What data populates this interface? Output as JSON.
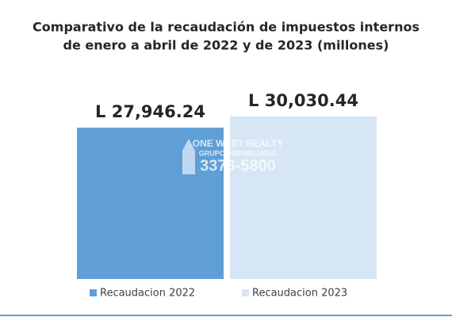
{
  "chart_data": {
    "type": "bar",
    "title": [
      "Comparativo de la recaudación de impuestos internos",
      "de enero a abril de 2022 y de 2023 (millones)"
    ],
    "series": [
      {
        "name": "Recaudacion 2022",
        "color": "#5f9fd6",
        "values": [
          27946.24
        ],
        "value_labels": [
          "L 27,946.24"
        ]
      },
      {
        "name": "Recaudacion 2023",
        "color": "#d6e6f4",
        "values": [
          30030.44
        ],
        "value_labels": [
          "L 30,030.44"
        ]
      }
    ],
    "ylim": [
      0,
      32500
    ],
    "watermark": [
      "ONE WEST REALTY",
      "GRUPO INMOBILIARIO",
      "3376-5800"
    ]
  }
}
